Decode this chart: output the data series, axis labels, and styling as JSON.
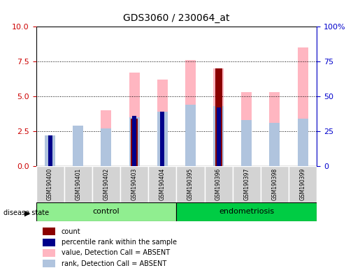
{
  "title": "GDS3060 / 230064_at",
  "samples": [
    "GSM190400",
    "GSM190401",
    "GSM190402",
    "GSM190403",
    "GSM190404",
    "GSM190395",
    "GSM190396",
    "GSM190397",
    "GSM190398",
    "GSM190399"
  ],
  "groups": [
    {
      "name": "control",
      "color": "#90EE90",
      "samples": [
        0,
        1,
        2,
        3,
        4
      ]
    },
    {
      "name": "endometriosis",
      "color": "#00CC00",
      "samples": [
        5,
        6,
        7,
        8,
        9
      ]
    }
  ],
  "value_absent": [
    2.0,
    2.9,
    4.0,
    6.7,
    6.2,
    7.6,
    7.0,
    5.3,
    5.3,
    8.5
  ],
  "rank_absent": [
    2.2,
    2.9,
    2.7,
    3.5,
    3.9,
    4.4,
    4.3,
    3.3,
    3.1,
    3.4
  ],
  "count": [
    null,
    null,
    null,
    3.4,
    null,
    null,
    7.0,
    null,
    null,
    null
  ],
  "percentile_rank": [
    2.2,
    null,
    null,
    3.6,
    3.9,
    null,
    4.2,
    null,
    null,
    null
  ],
  "left_yticks": [
    0,
    2.5,
    5.0,
    7.5,
    10
  ],
  "left_ylabel": "",
  "right_yticks": [
    0,
    25,
    50,
    75,
    100
  ],
  "right_ylabel": "",
  "ylim_left": [
    0,
    10
  ],
  "ylim_right": [
    0,
    100
  ],
  "bar_width": 0.25,
  "colors": {
    "count": "#8B0000",
    "percentile_rank": "#00008B",
    "value_absent": "#FFB6C1",
    "rank_absent": "#B0C4DE",
    "left_axis": "#CC0000",
    "right_axis": "#0000CC",
    "grid": "#000000",
    "bar_bg": "#D3D3D3"
  },
  "legend_items": [
    {
      "label": "count",
      "color": "#8B0000",
      "marker": "s"
    },
    {
      "label": "percentile rank within the sample",
      "color": "#00008B",
      "marker": "s"
    },
    {
      "label": "value, Detection Call = ABSENT",
      "color": "#FFB6C1",
      "marker": "s"
    },
    {
      "label": "rank, Detection Call = ABSENT",
      "color": "#B0C4DE",
      "marker": "s"
    }
  ]
}
